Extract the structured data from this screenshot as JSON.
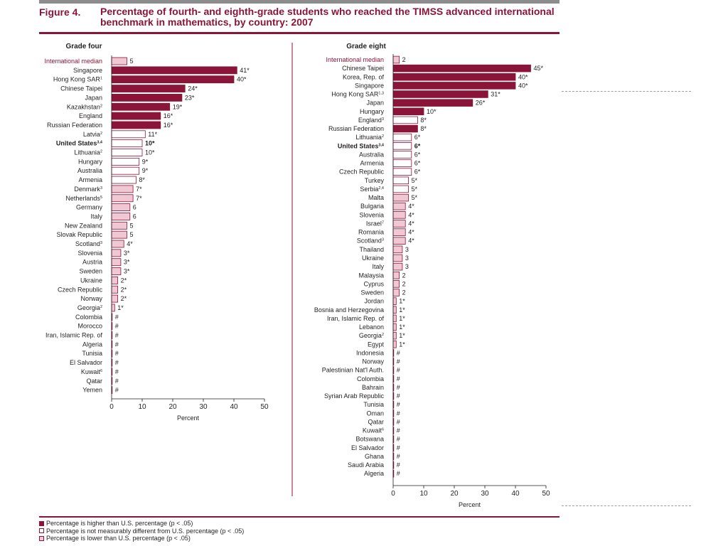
{
  "figure_label": "Figure 4.",
  "figure_title": "Percentage of fourth- and eighth-grade students who reached the TIMSS advanced international benchmark in mathematics, by country: 2007",
  "colors": {
    "higher": "#8a1538",
    "same": "#ffffff",
    "lower": "#f0c8d3",
    "accent": "#8a1538",
    "outline": "#8a1538"
  },
  "legend": [
    {
      "status": "higher",
      "text": "Percentage is higher than U.S. percentage (p < .05)"
    },
    {
      "status": "same",
      "text": "Percentage is not measurably different from U.S. percentage (p < .05)"
    },
    {
      "status": "lower",
      "text": "Percentage is lower than U.S. percentage (p < .05)"
    }
  ],
  "chart_data": [
    {
      "type": "bar",
      "orientation": "horizontal",
      "title": "Grade four",
      "xlabel": "Percent",
      "xlim": [
        0,
        50
      ],
      "xticks": [
        0,
        10,
        20,
        30,
        40,
        50
      ],
      "rows": [
        {
          "label": "International median",
          "value": 5,
          "value_label": "5",
          "status": "lower",
          "style": "median"
        },
        {
          "label": "Singapore",
          "value": 41,
          "value_label": "41*",
          "status": "higher"
        },
        {
          "label": "Hong Kong SAR",
          "sup": "1",
          "value": 40,
          "value_label": "40*",
          "status": "higher"
        },
        {
          "label": "Chinese Taipei",
          "value": 24,
          "value_label": "24*",
          "status": "higher"
        },
        {
          "label": "Japan",
          "value": 23,
          "value_label": "23*",
          "status": "higher"
        },
        {
          "label": "Kazakhstan",
          "sup": "2",
          "value": 19,
          "value_label": "19*",
          "status": "higher"
        },
        {
          "label": "England",
          "value": 16,
          "value_label": "16*",
          "status": "higher"
        },
        {
          "label": "Russian Federation",
          "value": 16,
          "value_label": "16*",
          "status": "higher"
        },
        {
          "label": "Latvia",
          "sup": "2",
          "value": 11,
          "value_label": "11*",
          "status": "same"
        },
        {
          "label": "United States",
          "sup": "3,4",
          "value": 10,
          "value_label": "10*",
          "status": "same",
          "style": "bold"
        },
        {
          "label": "Lithuania",
          "sup": "2",
          "value": 10,
          "value_label": "10*",
          "status": "same"
        },
        {
          "label": "Hungary",
          "value": 9,
          "value_label": "9*",
          "status": "same"
        },
        {
          "label": "Australia",
          "value": 9,
          "value_label": "9*",
          "status": "same"
        },
        {
          "label": "Armenia",
          "value": 8,
          "value_label": "8*",
          "status": "same"
        },
        {
          "label": "Denmark",
          "sup": "3",
          "value": 7,
          "value_label": "7*",
          "status": "lower"
        },
        {
          "label": "Netherlands",
          "sup": "5",
          "value": 7,
          "value_label": "7*",
          "status": "lower"
        },
        {
          "label": "Germany",
          "value": 6,
          "value_label": "6",
          "status": "lower"
        },
        {
          "label": "Italy",
          "value": 6,
          "value_label": "6",
          "status": "lower"
        },
        {
          "label": "New Zealand",
          "value": 5,
          "value_label": "5",
          "status": "lower"
        },
        {
          "label": "Slovak Republic",
          "value": 5,
          "value_label": "5",
          "status": "lower"
        },
        {
          "label": "Scotland",
          "sup": "3",
          "value": 4,
          "value_label": "4*",
          "status": "lower"
        },
        {
          "label": "Slovenia",
          "value": 3,
          "value_label": "3*",
          "status": "lower"
        },
        {
          "label": "Austria",
          "value": 3,
          "value_label": "3*",
          "status": "lower"
        },
        {
          "label": "Sweden",
          "value": 3,
          "value_label": "3*",
          "status": "lower"
        },
        {
          "label": "Ukraine",
          "value": 2,
          "value_label": "2*",
          "status": "lower"
        },
        {
          "label": "Czech Republic",
          "value": 2,
          "value_label": "2*",
          "status": "lower"
        },
        {
          "label": "Norway",
          "value": 2,
          "value_label": "2*",
          "status": "lower"
        },
        {
          "label": "Georgia",
          "sup": "2",
          "value": 1,
          "value_label": "1*",
          "status": "lower"
        },
        {
          "label": "Colombia",
          "value": 0,
          "value_label": "#",
          "status": "lower"
        },
        {
          "label": "Morocco",
          "value": 0,
          "value_label": "#",
          "status": "lower"
        },
        {
          "label": "Iran, Islamic Rep. of",
          "value": 0,
          "value_label": "#",
          "status": "lower"
        },
        {
          "label": "Algeria",
          "value": 0,
          "value_label": "#",
          "status": "lower"
        },
        {
          "label": "Tunisia",
          "value": 0,
          "value_label": "#",
          "status": "lower"
        },
        {
          "label": "El Salvador",
          "value": 0,
          "value_label": "#",
          "status": "lower"
        },
        {
          "label": "Kuwait",
          "sup": "6",
          "value": 0,
          "value_label": "#",
          "status": "lower"
        },
        {
          "label": "Qatar",
          "value": 0,
          "value_label": "#",
          "status": "lower"
        },
        {
          "label": "Yemen",
          "value": 0,
          "value_label": "#",
          "status": "lower"
        }
      ]
    },
    {
      "type": "bar",
      "orientation": "horizontal",
      "title": "Grade eight",
      "xlabel": "Percent",
      "xlim": [
        0,
        50
      ],
      "xticks": [
        0,
        10,
        20,
        30,
        40,
        50
      ],
      "rows": [
        {
          "label": "International median",
          "value": 2,
          "value_label": "2",
          "status": "lower",
          "style": "median"
        },
        {
          "label": "Chinese Taipei",
          "value": 45,
          "value_label": "45*",
          "status": "higher"
        },
        {
          "label": "Korea, Rep. of",
          "value": 40,
          "value_label": "40*",
          "status": "higher"
        },
        {
          "label": "Singapore",
          "value": 40,
          "value_label": "40*",
          "status": "higher"
        },
        {
          "label": "Hong Kong SAR",
          "sup": "1,3",
          "value": 31,
          "value_label": "31*",
          "status": "higher"
        },
        {
          "label": "Japan",
          "value": 26,
          "value_label": "26*",
          "status": "higher"
        },
        {
          "label": "Hungary",
          "value": 10,
          "value_label": "10*",
          "status": "higher"
        },
        {
          "label": "England",
          "sup": "3",
          "value": 8,
          "value_label": "8*",
          "status": "same"
        },
        {
          "label": "Russian Federation",
          "value": 8,
          "value_label": "8*",
          "status": "higher"
        },
        {
          "label": "Lithuania",
          "sup": "2",
          "value": 6,
          "value_label": "6*",
          "status": "same"
        },
        {
          "label": "United States",
          "sup": "3,4",
          "value": 6,
          "value_label": "6*",
          "status": "same",
          "style": "bold"
        },
        {
          "label": "Australia",
          "value": 6,
          "value_label": "6*",
          "status": "same"
        },
        {
          "label": "Armenia",
          "value": 6,
          "value_label": "6*",
          "status": "same"
        },
        {
          "label": "Czech Republic",
          "value": 6,
          "value_label": "6*",
          "status": "same"
        },
        {
          "label": "Turkey",
          "value": 5,
          "value_label": "5*",
          "status": "same"
        },
        {
          "label": "Serbia",
          "sup": "2,4",
          "value": 5,
          "value_label": "5*",
          "status": "same"
        },
        {
          "label": "Malta",
          "value": 5,
          "value_label": "5*",
          "status": "lower"
        },
        {
          "label": "Bulgaria",
          "value": 4,
          "value_label": "4*",
          "status": "lower"
        },
        {
          "label": "Slovenia",
          "value": 4,
          "value_label": "4*",
          "status": "lower"
        },
        {
          "label": "Israel",
          "sup": "7",
          "value": 4,
          "value_label": "4*",
          "status": "lower"
        },
        {
          "label": "Romania",
          "value": 4,
          "value_label": "4*",
          "status": "lower"
        },
        {
          "label": "Scotland",
          "sup": "3",
          "value": 4,
          "value_label": "4*",
          "status": "lower"
        },
        {
          "label": "Thailand",
          "value": 3,
          "value_label": "3",
          "status": "lower"
        },
        {
          "label": "Ukraine",
          "value": 3,
          "value_label": "3",
          "status": "lower"
        },
        {
          "label": "Italy",
          "value": 3,
          "value_label": "3",
          "status": "lower"
        },
        {
          "label": "Malaysia",
          "value": 2,
          "value_label": "2",
          "status": "lower"
        },
        {
          "label": "Cyprus",
          "value": 2,
          "value_label": "2",
          "status": "lower"
        },
        {
          "label": "Sweden",
          "value": 2,
          "value_label": "2",
          "status": "lower"
        },
        {
          "label": "Jordan",
          "value": 1,
          "value_label": "1*",
          "status": "lower"
        },
        {
          "label": "Bosnia and Herzegovina",
          "value": 1,
          "value_label": "1*",
          "status": "lower"
        },
        {
          "label": "Iran, Islamic Rep. of",
          "value": 1,
          "value_label": "1*",
          "status": "lower"
        },
        {
          "label": "Lebanon",
          "value": 1,
          "value_label": "1*",
          "status": "lower"
        },
        {
          "label": "Georgia",
          "sup": "2",
          "value": 1,
          "value_label": "1*",
          "status": "lower"
        },
        {
          "label": "Egypt",
          "value": 1,
          "value_label": "1*",
          "status": "lower"
        },
        {
          "label": "Indonesia",
          "value": 0,
          "value_label": "#",
          "status": "lower"
        },
        {
          "label": "Norway",
          "value": 0,
          "value_label": "#",
          "status": "lower"
        },
        {
          "label": "Palestinian Nat'l Auth.",
          "value": 0,
          "value_label": "#",
          "status": "lower"
        },
        {
          "label": "Colombia",
          "value": 0,
          "value_label": "#",
          "status": "lower"
        },
        {
          "label": "Bahrain",
          "value": 0,
          "value_label": "#",
          "status": "lower"
        },
        {
          "label": "Syrian Arab Republic",
          "value": 0,
          "value_label": "#",
          "status": "lower"
        },
        {
          "label": "Tunisia",
          "value": 0,
          "value_label": "#",
          "status": "lower"
        },
        {
          "label": "Oman",
          "value": 0,
          "value_label": "#",
          "status": "lower"
        },
        {
          "label": "Qatar",
          "value": 0,
          "value_label": "#",
          "status": "lower"
        },
        {
          "label": "Kuwait",
          "sup": "6",
          "value": 0,
          "value_label": "#",
          "status": "lower"
        },
        {
          "label": "Botswana",
          "value": 0,
          "value_label": "#",
          "status": "lower"
        },
        {
          "label": "El Salvador",
          "value": 0,
          "value_label": "#",
          "status": "lower"
        },
        {
          "label": "Ghana",
          "value": 0,
          "value_label": "#",
          "status": "lower"
        },
        {
          "label": "Saudi Arabia",
          "value": 0,
          "value_label": "#",
          "status": "lower"
        },
        {
          "label": "Algeria",
          "value": 0,
          "value_label": "#",
          "status": "lower"
        }
      ]
    }
  ]
}
